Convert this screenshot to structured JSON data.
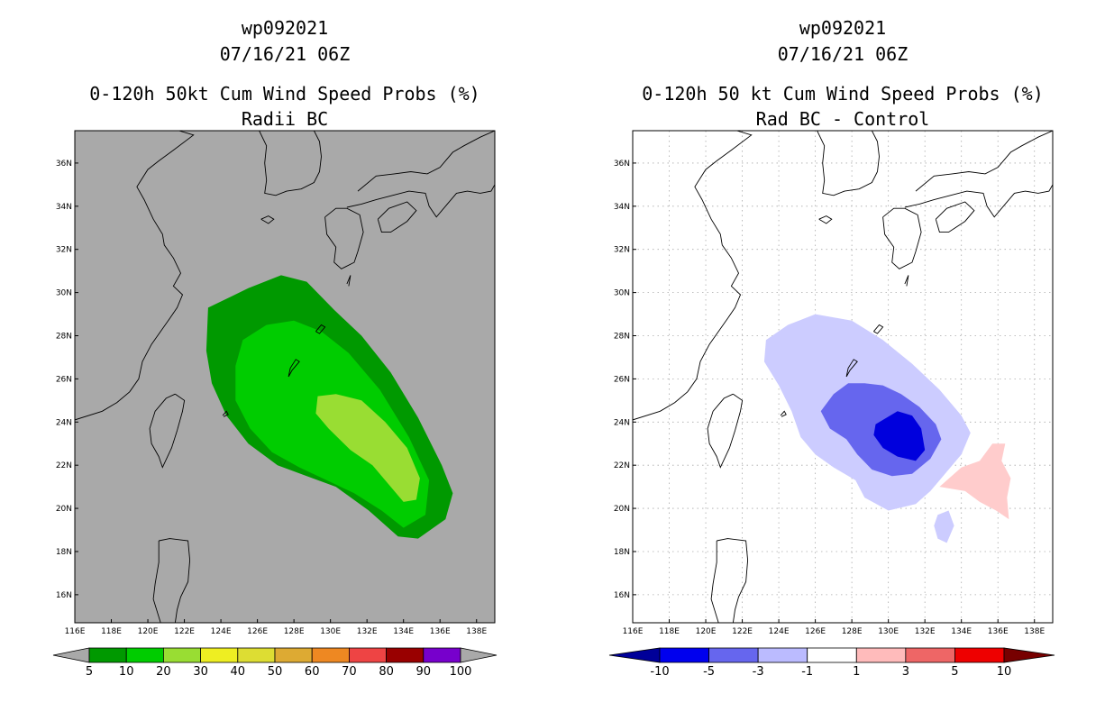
{
  "chart_data": [
    {
      "type": "heatmap",
      "panel": "left",
      "title_lines": [
        "wp092021",
        "07/16/21 06Z",
        "0-120h 50kt Cum Wind Speed Probs (%)",
        "Radii BC"
      ],
      "x_ticks": [
        "116E",
        "118E",
        "120E",
        "122E",
        "124E",
        "126E",
        "128E",
        "130E",
        "132E",
        "134E",
        "136E",
        "138E"
      ],
      "y_ticks": [
        "16N",
        "18N",
        "20N",
        "22N",
        "24N",
        "26N",
        "28N",
        "30N",
        "32N",
        "34N",
        "36N"
      ],
      "xlim": [
        116,
        139
      ],
      "ylim": [
        14.7,
        37.5
      ],
      "background_color": "#a9a9a9",
      "gridlines": false,
      "colorbar": {
        "labels": [
          "5",
          "10",
          "20",
          "30",
          "40",
          "50",
          "60",
          "70",
          "80",
          "90",
          "100"
        ],
        "colors": [
          "#009900",
          "#00cc00",
          "#99dd33",
          "#eeee22",
          "#dddd33",
          "#ddaa33",
          "#ee8822",
          "#ee4444",
          "#990000",
          "#7700cc"
        ],
        "end_arrow_color": "#a9a9a9"
      },
      "contours": [
        {
          "level": "5-10",
          "color": "#009900",
          "points": [
            [
              123.3,
              29.3
            ],
            [
              125.5,
              30.2
            ],
            [
              127.3,
              30.8
            ],
            [
              128.7,
              30.5
            ],
            [
              130.2,
              29.2
            ],
            [
              131.7,
              28
            ],
            [
              133.3,
              26.3
            ],
            [
              134.8,
              24.2
            ],
            [
              136.1,
              22
            ],
            [
              136.7,
              20.7
            ],
            [
              136.3,
              19.5
            ],
            [
              134.8,
              18.6
            ],
            [
              133.7,
              18.7
            ],
            [
              132.1,
              19.9
            ],
            [
              130.3,
              21
            ],
            [
              128.7,
              21.5
            ],
            [
              127.1,
              22
            ],
            [
              125.5,
              23
            ],
            [
              124.3,
              24.3
            ],
            [
              123.5,
              25.8
            ],
            [
              123.2,
              27.3
            ]
          ]
        },
        {
          "level": "10-20",
          "color": "#00cc00",
          "points": [
            [
              125.2,
              27.8
            ],
            [
              126.5,
              28.5
            ],
            [
              128,
              28.7
            ],
            [
              129.5,
              28.2
            ],
            [
              131,
              27.2
            ],
            [
              132.7,
              25.5
            ],
            [
              134.3,
              23.3
            ],
            [
              135.4,
              21.3
            ],
            [
              135.2,
              19.7
            ],
            [
              134,
              19.1
            ],
            [
              132.8,
              19.9
            ],
            [
              131.3,
              20.7
            ],
            [
              129.8,
              21.3
            ],
            [
              128.3,
              21.9
            ],
            [
              126.8,
              22.6
            ],
            [
              125.6,
              23.7
            ],
            [
              124.8,
              25
            ],
            [
              124.8,
              26.6
            ]
          ]
        },
        {
          "level": "20-30",
          "color": "#99dd33",
          "points": [
            [
              129.3,
              25.2
            ],
            [
              130.3,
              25.3
            ],
            [
              131.7,
              25
            ],
            [
              133,
              24
            ],
            [
              134.2,
              22.8
            ],
            [
              134.9,
              21.4
            ],
            [
              134.7,
              20.4
            ],
            [
              134,
              20.3
            ],
            [
              133.2,
              21.1
            ],
            [
              132.3,
              22
            ],
            [
              131.1,
              22.7
            ],
            [
              129.9,
              23.7
            ],
            [
              129.2,
              24.4
            ]
          ]
        }
      ]
    },
    {
      "type": "heatmap",
      "panel": "right",
      "title_lines": [
        "wp092021",
        "07/16/21 06Z",
        "0-120h 50 kt Cum Wind Speed Probs (%)",
        "Rad BC - Control"
      ],
      "x_ticks": [
        "116E",
        "118E",
        "120E",
        "122E",
        "124E",
        "126E",
        "128E",
        "130E",
        "132E",
        "134E",
        "136E",
        "138E"
      ],
      "y_ticks": [
        "16N",
        "18N",
        "20N",
        "22N",
        "24N",
        "26N",
        "28N",
        "30N",
        "32N",
        "34N",
        "36N"
      ],
      "xlim": [
        116,
        139
      ],
      "ylim": [
        14.7,
        37.5
      ],
      "background_color": "#ffffff",
      "gridlines": true,
      "colorbar": {
        "labels": [
          "-10",
          "-5",
          "-3",
          "-1",
          "1",
          "3",
          "5",
          "10"
        ],
        "colors": [
          "#0000ee",
          "#6666ee",
          "#bbbbff",
          "#ffffff",
          "#ffbbbb",
          "#ee6666",
          "#ee0000"
        ],
        "end_arrow_colors": [
          "#000099",
          "#770000"
        ]
      },
      "contours": [
        {
          "level": "-3 to -1",
          "color": "#ccccff",
          "points": [
            [
              123.3,
              27.8
            ],
            [
              124.5,
              28.5
            ],
            [
              126,
              29
            ],
            [
              128,
              28.7
            ],
            [
              129.7,
              27.8
            ],
            [
              131.3,
              26.7
            ],
            [
              132.8,
              25.5
            ],
            [
              134,
              24.3
            ],
            [
              134.5,
              23.5
            ],
            [
              134,
              22.5
            ],
            [
              133,
              21.5
            ],
            [
              132.3,
              20.8
            ],
            [
              131.5,
              20.2
            ],
            [
              130,
              19.9
            ],
            [
              128.7,
              20.5
            ],
            [
              128.2,
              21.3
            ],
            [
              127,
              21.9
            ],
            [
              126,
              22.5
            ],
            [
              125.2,
              23.3
            ],
            [
              124.7,
              24.5
            ],
            [
              124,
              25.7
            ],
            [
              123.2,
              26.8
            ]
          ]
        },
        {
          "level": "-3 to -1",
          "color": "#ccccff",
          "points": [
            [
              132.7,
              19.7
            ],
            [
              133.3,
              19.9
            ],
            [
              133.6,
              19.2
            ],
            [
              133.2,
              18.4
            ],
            [
              132.7,
              18.6
            ],
            [
              132.5,
              19.2
            ]
          ]
        },
        {
          "level": "-5 to -3",
          "color": "#6666ee",
          "points": [
            [
              126.3,
              24.5
            ],
            [
              127,
              25.3
            ],
            [
              127.8,
              25.8
            ],
            [
              128.7,
              25.8
            ],
            [
              129.7,
              25.7
            ],
            [
              130.7,
              25.3
            ],
            [
              131.7,
              24.7
            ],
            [
              132.6,
              23.9
            ],
            [
              132.9,
              23.2
            ],
            [
              132.3,
              22.3
            ],
            [
              131.3,
              21.6
            ],
            [
              130.2,
              21.5
            ],
            [
              129.1,
              21.8
            ],
            [
              128.3,
              22.5
            ],
            [
              127.7,
              23.2
            ],
            [
              126.8,
              23.7
            ]
          ]
        },
        {
          "level": "-10 to -5",
          "color": "#0000dd",
          "points": [
            [
              129.3,
              23.9
            ],
            [
              130.5,
              24.5
            ],
            [
              131.3,
              24.3
            ],
            [
              131.8,
              23.7
            ],
            [
              132,
              22.7
            ],
            [
              131.5,
              22.2
            ],
            [
              130.5,
              22.4
            ],
            [
              129.7,
              22.8
            ],
            [
              129.2,
              23.4
            ]
          ]
        },
        {
          "level": "1 to 3",
          "color": "#ffcccc",
          "points": [
            [
              132.8,
              21
            ],
            [
              134,
              21.9
            ],
            [
              135,
              22.2
            ],
            [
              135.7,
              23
            ],
            [
              136.4,
              23
            ],
            [
              136.2,
              22.2
            ],
            [
              136.7,
              21.4
            ],
            [
              136.5,
              20.5
            ],
            [
              136.6,
              19.5
            ],
            [
              135.9,
              19.9
            ],
            [
              135,
              20.3
            ],
            [
              134.2,
              20.8
            ]
          ]
        }
      ]
    }
  ]
}
